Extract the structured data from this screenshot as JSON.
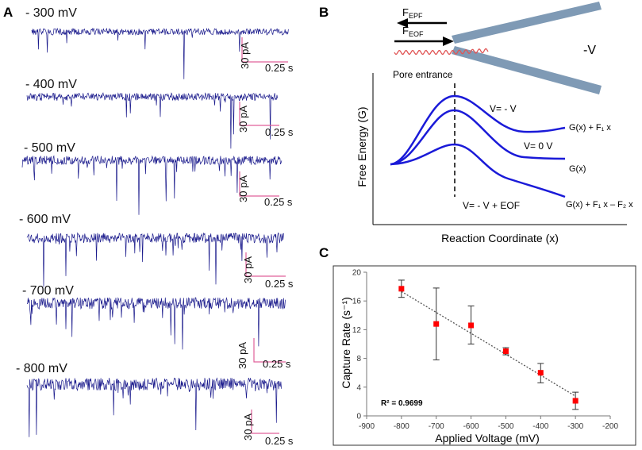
{
  "panel_a": {
    "label": "A",
    "traces": [
      {
        "voltage": "- 300 mV",
        "scale_current": "30 pA",
        "scale_time": "0.25 s",
        "density": 0.18
      },
      {
        "voltage": "- 400 mV",
        "scale_current": "30 pA",
        "scale_time": "0.25 s",
        "density": 0.3
      },
      {
        "voltage": "- 500 mV",
        "scale_current": "30 pA",
        "scale_time": "0.25 s",
        "density": 0.42
      },
      {
        "voltage": "- 600 mV",
        "scale_current": "30 pA",
        "scale_time": "0.25 s",
        "density": 0.4
      },
      {
        "voltage": "- 700 mV",
        "scale_current": "30 pA",
        "scale_time": "0.25 s",
        "density": 0.55
      },
      {
        "voltage": "- 800 mV",
        "scale_current": "30 pA",
        "scale_time": "0.25 s",
        "density": 0.62
      }
    ]
  },
  "panel_b": {
    "label": "B",
    "force_epf": {
      "base": "F",
      "sub": "EPF"
    },
    "force_eof": {
      "base": "F",
      "sub": "EOF"
    },
    "pore_voltage": "-V",
    "pore_entrance": "Pore entrance",
    "ylabel": "Free Energy (G)",
    "xlabel": "Reaction Coordinate (x)",
    "curve_labels": [
      "V= - V",
      "V= 0 V",
      "V= - V + EOF"
    ],
    "curve_end_labels": [
      "G(x) + F₁ x",
      "G(x)",
      "G(x) + F₁ x – F₂ x"
    ]
  },
  "chart_data": {
    "panel_label": "C",
    "type": "scatter",
    "title": "",
    "xlabel": "Applied Voltage (mV)",
    "ylabel": "Capture Rate (s⁻¹)",
    "xlim": [
      -900,
      -200
    ],
    "ylim": [
      0,
      20
    ],
    "xticks": [
      -900,
      -800,
      -700,
      -600,
      -500,
      -400,
      -300,
      -200
    ],
    "yticks": [
      0,
      4,
      8,
      12,
      16,
      20
    ],
    "x": [
      -800,
      -700,
      -600,
      -500,
      -400,
      -300
    ],
    "y": [
      17.7,
      12.8,
      12.6,
      9.0,
      6.0,
      2.1
    ],
    "err_upper": [
      1.2,
      5.0,
      2.7,
      0.5,
      1.3,
      1.2
    ],
    "err_lower": [
      1.2,
      5.0,
      2.6,
      0.5,
      1.4,
      1.2
    ],
    "trendline": {
      "type": "linear",
      "r2_label": "R² = 0.9699"
    },
    "marker_color": "#ff0000"
  },
  "colors": {
    "trace": "#1a1a8c",
    "scale_bar": "#e0609a",
    "curve": "#1a1ad8",
    "pore": "#7f9ab5",
    "dna": "#e05555"
  }
}
